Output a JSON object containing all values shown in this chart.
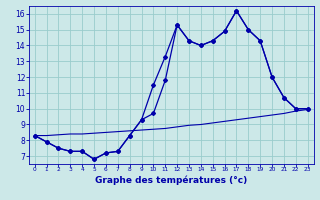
{
  "title": "Graphe des températures (°c)",
  "bg_color": "#cce8e8",
  "grid_color": "#99cccc",
  "line_color": "#0000aa",
  "xlim": [
    -0.5,
    23.5
  ],
  "ylim": [
    6.5,
    16.5
  ],
  "xticks": [
    0,
    1,
    2,
    3,
    4,
    5,
    6,
    7,
    8,
    9,
    10,
    11,
    12,
    13,
    14,
    15,
    16,
    17,
    18,
    19,
    20,
    21,
    22,
    23
  ],
  "yticks": [
    7,
    8,
    9,
    10,
    11,
    12,
    13,
    14,
    15,
    16
  ],
  "line1": [
    8.3,
    7.9,
    7.5,
    7.3,
    7.3,
    6.8,
    7.2,
    7.3,
    8.3,
    9.3,
    9.7,
    11.8,
    15.3,
    14.3,
    14.0,
    14.3,
    14.9,
    16.2,
    15.0,
    14.3,
    12.0,
    10.7,
    10.0,
    10.0
  ],
  "line2": [
    8.3,
    7.9,
    7.5,
    7.3,
    7.3,
    6.8,
    7.2,
    7.3,
    8.3,
    9.3,
    11.5,
    13.3,
    15.3,
    14.3,
    14.0,
    14.3,
    14.9,
    16.2,
    15.0,
    14.3,
    12.0,
    10.7,
    10.0,
    10.0
  ],
  "line3": [
    8.3,
    8.3,
    8.35,
    8.4,
    8.4,
    8.45,
    8.5,
    8.55,
    8.6,
    8.65,
    8.7,
    8.75,
    8.85,
    8.95,
    9.0,
    9.1,
    9.2,
    9.3,
    9.4,
    9.5,
    9.6,
    9.7,
    9.85,
    9.95
  ]
}
